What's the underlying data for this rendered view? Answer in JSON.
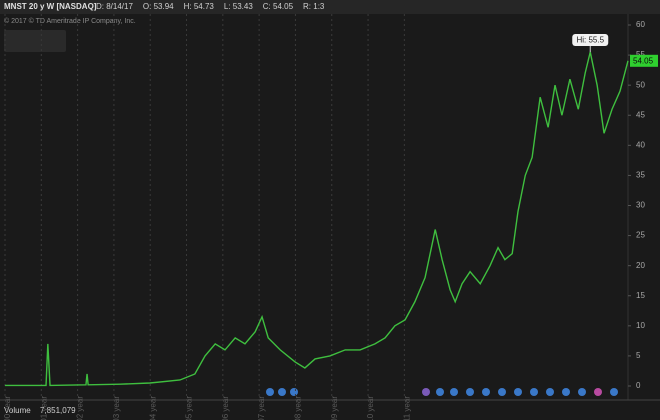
{
  "chart_data": {
    "type": "line",
    "title": "MNST 20 y W [NASDAQ]",
    "quote": [
      "D: 8/14/17",
      "O: 53.94",
      "H: 54.73",
      "L: 53.43",
      "C: 54.05",
      "R: 1:3"
    ],
    "copyright": "© 2017 © TD Ameritrade IP Company, Inc.",
    "annotations": [
      "Hi: 55.5",
      "54.05"
    ],
    "volume_title": "Volume",
    "volume_value": "7,851,079",
    "x": [
      2000.0,
      2000.96,
      2001.13,
      2001.18,
      2001.24,
      2002.23,
      2002.26,
      2002.29,
      2003.17,
      2003.99,
      2004.82,
      2005.23,
      2005.51,
      2005.79,
      2006.06,
      2006.34,
      2006.61,
      2006.89,
      2007.08,
      2007.25,
      2007.58,
      2007.99,
      2008.26,
      2008.54,
      2008.95,
      2009.37,
      2009.78,
      2010.19,
      2010.47,
      2010.74,
      2011.02,
      2011.29,
      2011.57,
      2011.85,
      2012.04,
      2012.26,
      2012.4,
      2012.59,
      2012.81,
      2013.09,
      2013.36,
      2013.58,
      2013.77,
      2013.97,
      2014.13,
      2014.33,
      2014.52,
      2014.74,
      2014.96,
      2015.15,
      2015.34,
      2015.56,
      2015.79,
      2015.98,
      2016.12,
      2016.31,
      2016.5,
      2016.72,
      2016.94,
      2017.16
    ],
    "series": [
      {
        "name": "MNST",
        "color": "#3fbf3f",
        "values": [
          0.1,
          0.1,
          0.1,
          7,
          0.1,
          0.2,
          2,
          0.2,
          0.3,
          0.5,
          1,
          2,
          5,
          7,
          6,
          8,
          7,
          9,
          11.5,
          8,
          6,
          4,
          3,
          4.5,
          5,
          6,
          6,
          7,
          8,
          10,
          11,
          14,
          18,
          26,
          21,
          16,
          14,
          17,
          19,
          17,
          20,
          23,
          21,
          22,
          29,
          35,
          38,
          48,
          43,
          50,
          45,
          51,
          46,
          52,
          55.5,
          50,
          42,
          46,
          49,
          54.05
        ]
      }
    ],
    "xlim": [
      2000,
      2017.16
    ],
    "xticks": [
      {
        "value": 2000,
        "label": "2000 year"
      },
      {
        "value": 2001,
        "label": "2001 year"
      },
      {
        "value": 2002,
        "label": "2002 year"
      },
      {
        "value": 2003,
        "label": "2003 year"
      },
      {
        "value": 2004,
        "label": "2004 year"
      },
      {
        "value": 2005,
        "label": "2005 year"
      },
      {
        "value": 2006,
        "label": "2006 year"
      },
      {
        "value": 2007,
        "label": "2007 year"
      },
      {
        "value": 2008,
        "label": "2008 year"
      },
      {
        "value": 2009,
        "label": "2009 year"
      },
      {
        "value": 2010,
        "label": "2010 year"
      },
      {
        "value": 2011,
        "label": "2011 year"
      }
    ],
    "ylim": [
      0,
      60
    ],
    "yticks": [
      0,
      5,
      10,
      15,
      20,
      25,
      30,
      35,
      40,
      45,
      50,
      55,
      60
    ],
    "grid": "x"
  }
}
